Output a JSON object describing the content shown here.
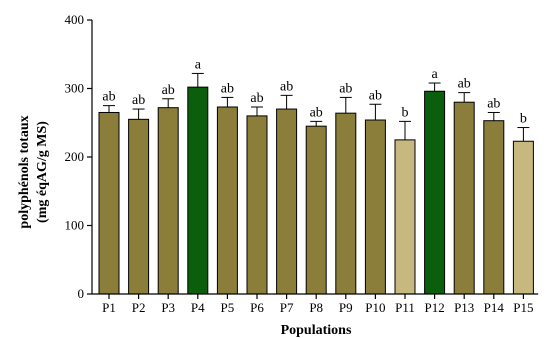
{
  "chart_data": {
    "type": "bar",
    "xlabel": "Populations",
    "ylabel_line1": "polyphénols totaux",
    "ylabel_line2": "(mg éqAG/g MS)",
    "ylim": [
      0,
      400
    ],
    "yticks": [
      0,
      100,
      200,
      300,
      400
    ],
    "grid": false,
    "error_bars": true,
    "categories": [
      "P1",
      "P2",
      "P3",
      "P4",
      "P5",
      "P6",
      "P7",
      "P8",
      "P9",
      "P10",
      "P11",
      "P12",
      "P13",
      "P14",
      "P15"
    ],
    "values": [
      265,
      255,
      272,
      302,
      273,
      260,
      270,
      245,
      264,
      254,
      225,
      296,
      280,
      253,
      223
    ],
    "errors": [
      10,
      15,
      13,
      20,
      14,
      13,
      20,
      7,
      23,
      23,
      27,
      12,
      14,
      12,
      20
    ],
    "significance": [
      "ab",
      "ab",
      "ab",
      "a",
      "ab",
      "ab",
      "ab",
      "ab",
      "ab",
      "ab",
      "b",
      "a",
      "ab",
      "ab",
      "b"
    ],
    "colors": {
      "ab": "#8b7d3a",
      "a": "#0b5e0b",
      "b": "#c7b87f",
      "axis": "#000000"
    }
  }
}
